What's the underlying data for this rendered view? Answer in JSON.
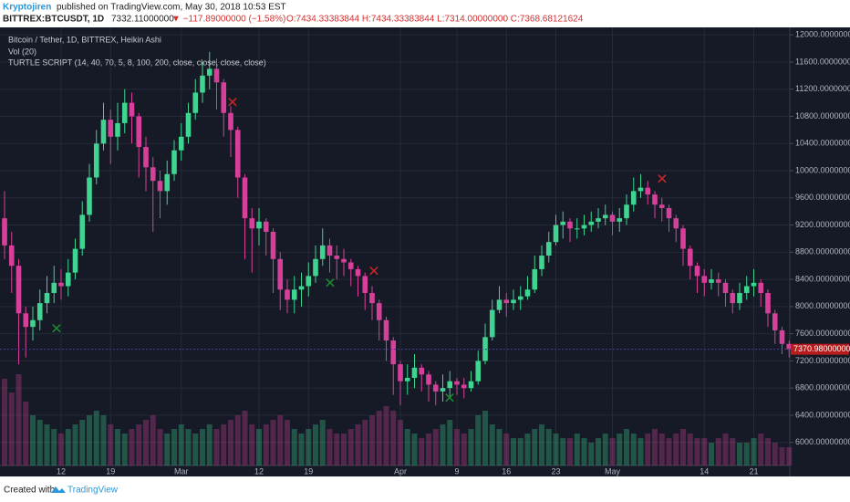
{
  "header": {
    "author": "Kryptojiren",
    "published": "published on TradingView.com, May 30, 2018 10:53 EST",
    "symbol": "BITTREX:BTCUSDT, 1D",
    "price": "7332.11000000",
    "change": "▼ −117.89000000 (−1.58%)",
    "ohlc": "O:7434.33383844 H:7434.33383844 L:7314.00000000 C:7368.68121624"
  },
  "chart_data": {
    "type": "candlestick",
    "legend": [
      "Bitcoin / Tether, 1D, BITTREX, Heikin Ashi",
      "Vol (20)",
      "TURTLE SCRIPT (14, 40, 70, 5, 8, 100, 200, close, close, close, close)"
    ],
    "up_color": "#3fd48f",
    "down_color": "#d6409b",
    "grid": true,
    "x": [
      null,
      null,
      null,
      null,
      null,
      null,
      null,
      null,
      "12",
      null,
      null,
      null,
      null,
      null,
      null,
      "19",
      null,
      null,
      null,
      null,
      null,
      null,
      null,
      null,
      null,
      "Mar",
      null,
      null,
      null,
      null,
      null,
      null,
      null,
      null,
      null,
      null,
      "12",
      null,
      null,
      null,
      null,
      null,
      null,
      "19",
      null,
      null,
      null,
      null,
      null,
      null,
      null,
      null,
      null,
      null,
      null,
      null,
      "Apr",
      null,
      null,
      null,
      null,
      null,
      null,
      null,
      "9",
      null,
      null,
      null,
      null,
      null,
      null,
      "16",
      null,
      null,
      null,
      null,
      null,
      null,
      "23",
      null,
      null,
      null,
      null,
      null,
      null,
      null,
      "May",
      null,
      null,
      null,
      null,
      null,
      null,
      null,
      null,
      null,
      null,
      null,
      null,
      "14",
      null,
      null,
      null,
      null,
      null,
      null,
      "21",
      null,
      null,
      null,
      null,
      null
    ],
    "open": [
      9300,
      8900,
      8600,
      7900,
      7700,
      7800,
      8050,
      8200,
      8350,
      8300,
      8500,
      8850,
      9350,
      9900,
      10400,
      10750,
      10500,
      10700,
      11000,
      10800,
      10350,
      10050,
      9850,
      9700,
      9950,
      10300,
      10500,
      10850,
      11150,
      11400,
      11500,
      11300,
      10850,
      10600,
      9900,
      9300,
      9150,
      9250,
      9100,
      8700,
      8250,
      8100,
      8250,
      8300,
      8450,
      8700,
      8900,
      8750,
      8700,
      8650,
      8550,
      8450,
      8200,
      8050,
      7800,
      7500,
      7150,
      6900,
      6950,
      7100,
      7000,
      6850,
      6750,
      6800,
      6900,
      6850,
      6800,
      6900,
      7200,
      7550,
      7950,
      8100,
      8050,
      8100,
      8150,
      8250,
      8550,
      8750,
      8950,
      9200,
      9250,
      9150,
      9150,
      9200,
      9250,
      9300,
      9350,
      9250,
      9300,
      9500,
      9700,
      9750,
      9650,
      9500,
      9450,
      9300,
      9150,
      8850,
      8600,
      8450,
      8350,
      8400,
      8350,
      8200,
      8050,
      8200,
      8300,
      8350,
      8200,
      7900,
      7650,
      7450
    ],
    "high": [
      9700,
      9100,
      8700,
      8000,
      8000,
      8250,
      8450,
      8600,
      8550,
      8700,
      9000,
      9550,
      10100,
      10600,
      11000,
      10900,
      11000,
      11200,
      11150,
      10850,
      10500,
      10200,
      10000,
      10150,
      10450,
      10700,
      11000,
      11350,
      11600,
      11750,
      11650,
      11350,
      10950,
      10650,
      9950,
      9450,
      9450,
      9300,
      9150,
      8800,
      8400,
      8450,
      8500,
      8650,
      8900,
      9150,
      9000,
      8900,
      8850,
      8700,
      8600,
      8500,
      8300,
      8100,
      7850,
      7550,
      7200,
      7150,
      7300,
      7150,
      7050,
      6900,
      7000,
      7050,
      6950,
      6950,
      7050,
      7350,
      7750,
      8100,
      8300,
      8200,
      8250,
      8300,
      8450,
      8750,
      8900,
      9100,
      9350,
      9400,
      9300,
      9300,
      9350,
      9400,
      9450,
      9500,
      9400,
      9450,
      9650,
      9900,
      9950,
      9850,
      9700,
      9600,
      9500,
      9350,
      9200,
      8900,
      8650,
      8550,
      8550,
      8500,
      8400,
      8250,
      8350,
      8450,
      8550,
      8400,
      8250,
      7950,
      7700,
      7500
    ],
    "low": [
      8700,
      8200,
      7150,
      7250,
      7500,
      7650,
      7900,
      8050,
      8100,
      8150,
      8400,
      8750,
      9250,
      9800,
      10300,
      10100,
      10300,
      10550,
      10400,
      9900,
      9700,
      9100,
      9300,
      9500,
      9850,
      10150,
      10400,
      10750,
      11000,
      11200,
      10900,
      10500,
      10200,
      9600,
      8700,
      8500,
      8900,
      8750,
      8200,
      7950,
      7900,
      7900,
      8000,
      8150,
      8350,
      8600,
      8500,
      8400,
      8450,
      8300,
      8150,
      7950,
      7800,
      7500,
      7200,
      6700,
      6550,
      6700,
      6800,
      6750,
      6600,
      6550,
      6600,
      6650,
      6700,
      6650,
      6750,
      6850,
      7150,
      7500,
      7900,
      7850,
      7950,
      7950,
      8100,
      8200,
      8450,
      8650,
      8900,
      9000,
      8950,
      9000,
      9050,
      9100,
      9150,
      9200,
      9050,
      9100,
      9200,
      9400,
      9600,
      9500,
      9300,
      9250,
      9100,
      8950,
      8600,
      8400,
      8200,
      8150,
      8250,
      8150,
      8000,
      7900,
      7950,
      8100,
      8150,
      8000,
      7700,
      7450,
      7300,
      7250
    ],
    "close": [
      8900,
      8600,
      7900,
      7700,
      7800,
      8050,
      8200,
      8350,
      8300,
      8500,
      8850,
      9350,
      9900,
      10400,
      10750,
      10500,
      10700,
      11000,
      10800,
      10350,
      10050,
      9850,
      9700,
      9950,
      10300,
      10500,
      10850,
      11150,
      11400,
      11500,
      11300,
      10850,
      10600,
      9900,
      9300,
      9150,
      9250,
      9100,
      8700,
      8250,
      8100,
      8250,
      8300,
      8450,
      8700,
      8900,
      8750,
      8700,
      8650,
      8550,
      8450,
      8200,
      8050,
      7800,
      7500,
      7150,
      6900,
      6950,
      7100,
      7000,
      6850,
      6750,
      6800,
      6900,
      6850,
      6800,
      6900,
      7200,
      7550,
      7950,
      8100,
      8050,
      8100,
      8150,
      8250,
      8550,
      8750,
      8950,
      9200,
      9250,
      9150,
      9150,
      9200,
      9250,
      9300,
      9350,
      9250,
      9300,
      9500,
      9700,
      9750,
      9650,
      9500,
      9450,
      9300,
      9150,
      8850,
      8600,
      8450,
      8350,
      8400,
      8350,
      8200,
      8050,
      8200,
      8300,
      8350,
      8200,
      7900,
      7650,
      7450,
      7370
    ],
    "volume": [
      95,
      80,
      100,
      70,
      55,
      50,
      45,
      40,
      35,
      40,
      45,
      50,
      55,
      60,
      55,
      45,
      40,
      35,
      40,
      45,
      50,
      55,
      40,
      35,
      40,
      45,
      40,
      35,
      40,
      45,
      40,
      45,
      50,
      55,
      60,
      45,
      40,
      45,
      50,
      55,
      50,
      40,
      35,
      40,
      45,
      50,
      40,
      35,
      35,
      40,
      45,
      50,
      55,
      60,
      65,
      60,
      50,
      40,
      35,
      30,
      35,
      40,
      45,
      50,
      40,
      35,
      40,
      55,
      60,
      45,
      40,
      35,
      30,
      30,
      35,
      40,
      45,
      40,
      35,
      30,
      30,
      35,
      30,
      25,
      30,
      35,
      30,
      35,
      40,
      35,
      30,
      35,
      40,
      35,
      30,
      35,
      40,
      35,
      30,
      30,
      25,
      30,
      35,
      30,
      25,
      25,
      30,
      35,
      30,
      25,
      20,
      20
    ],
    "ylim": [
      5660,
      12110
    ],
    "yticks": [
      {
        "value": 6000,
        "label": "6000.00000000"
      },
      {
        "value": 6400,
        "label": "6400.00000000"
      },
      {
        "value": 6800,
        "label": "6800.00000000"
      },
      {
        "value": 7200,
        "label": "7200.00000000"
      },
      {
        "value": 7600,
        "label": "7600.00000000"
      },
      {
        "value": 8000,
        "label": "8000.00000000"
      },
      {
        "value": 8400,
        "label": "8400.00000000"
      },
      {
        "value": 8800,
        "label": "8800.00000000"
      },
      {
        "value": 9200,
        "label": "9200.00000000"
      },
      {
        "value": 9600,
        "label": "9600.00000000"
      },
      {
        "value": 10000,
        "label": "10000.00000000"
      },
      {
        "value": 10400,
        "label": "10400.00000000"
      },
      {
        "value": 10800,
        "label": "10800.00000000"
      },
      {
        "value": 11200,
        "label": "11200.00000000"
      },
      {
        "value": 11600,
        "label": "11600.00000000"
      },
      {
        "value": 12000,
        "label": "12000.00000000"
      }
    ],
    "last_price": {
      "value": 7370.98,
      "label": "7370.980000000"
    }
  },
  "footer": {
    "created": "Created with",
    "brand": "TradingView"
  }
}
